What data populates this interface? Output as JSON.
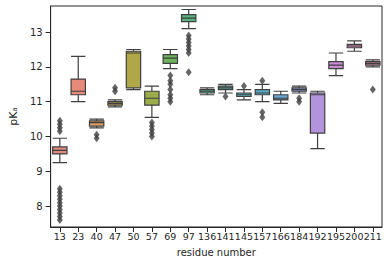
{
  "chart_data": {
    "type": "boxplot",
    "x_label": "residue number",
    "y_label": "pKₐ",
    "categories": [
      "13",
      "23",
      "40",
      "47",
      "50",
      "57",
      "69",
      "97",
      "136",
      "141",
      "145",
      "157",
      "166",
      "184",
      "192",
      "195",
      "200",
      "211"
    ],
    "values": [
      [
        9.25,
        9.5,
        9.6,
        9.7,
        9.95
      ],
      [
        11.0,
        11.2,
        11.3,
        11.65,
        12.3
      ],
      [
        10.25,
        10.3,
        10.4,
        10.45,
        10.5
      ],
      [
        10.85,
        10.9,
        10.95,
        11.0,
        11.05
      ],
      [
        11.35,
        11.4,
        12.4,
        12.45,
        12.5
      ],
      [
        10.55,
        10.9,
        11.1,
        11.3,
        11.45
      ],
      [
        11.95,
        12.1,
        12.25,
        12.35,
        12.5
      ],
      [
        13.1,
        13.3,
        13.4,
        13.5,
        13.65
      ],
      [
        11.2,
        11.25,
        11.3,
        11.35,
        11.4
      ],
      [
        11.25,
        11.35,
        11.4,
        11.45,
        11.5
      ],
      [
        11.05,
        11.15,
        11.2,
        11.25,
        11.35
      ],
      [
        11.0,
        11.2,
        11.25,
        11.35,
        11.5
      ],
      [
        10.95,
        11.05,
        11.1,
        11.2,
        11.3
      ],
      [
        11.25,
        11.3,
        11.35,
        11.4,
        11.45
      ],
      [
        9.65,
        10.1,
        11.2,
        11.25,
        11.3
      ],
      [
        11.75,
        11.95,
        12.05,
        12.15,
        12.4
      ],
      [
        12.45,
        12.55,
        12.6,
        12.65,
        12.75
      ],
      [
        12.0,
        12.05,
        12.1,
        12.15,
        12.2
      ]
    ],
    "outliers": [
      [
        7.6,
        7.7,
        7.8,
        7.9,
        8.0,
        8.1,
        8.2,
        8.3,
        8.4,
        8.5,
        10.15,
        10.25,
        10.35,
        10.45
      ],
      [],
      [
        9.95,
        10.05
      ],
      [
        11.3,
        11.4
      ],
      [],
      [
        10.0,
        10.1,
        10.2,
        10.3,
        10.4
      ],
      [
        11.0,
        11.1,
        11.2,
        11.35,
        11.5,
        11.6,
        11.75
      ],
      [
        11.85,
        12.4,
        12.5,
        12.6,
        12.7,
        12.8,
        12.9
      ],
      [],
      [
        11.15
      ],
      [
        11.45
      ],
      [
        10.55,
        10.7,
        11.6
      ],
      [],
      [
        11.0,
        11.1
      ],
      [],
      [],
      [],
      [
        11.35
      ]
    ],
    "colors": [
      "#e08a82",
      "#e68b7c",
      "#dc9e63",
      "#c6a84e",
      "#b0a848",
      "#9aad4a",
      "#6db35a",
      "#58b47e",
      "#55b297",
      "#56b0a7",
      "#57adb6",
      "#5aabc4",
      "#6aa5d3",
      "#8b9ede",
      "#b493de",
      "#cb8cd4",
      "#d78ab8",
      "#df8aa2"
    ],
    "marker": "diamond",
    "ylim": [
      7.4,
      13.75
    ],
    "yticks": [
      8,
      9,
      10,
      11,
      12,
      13
    ],
    "grid": false
  }
}
